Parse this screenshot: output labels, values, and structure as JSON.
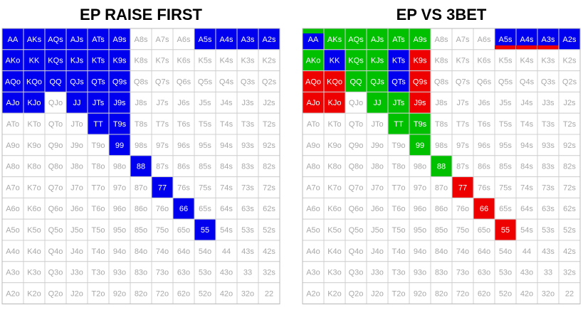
{
  "hands": [
    [
      "AA",
      "AKs",
      "AQs",
      "AJs",
      "ATs",
      "A9s",
      "A8s",
      "A7s",
      "A6s",
      "A5s",
      "A4s",
      "A3s",
      "A2s"
    ],
    [
      "AKo",
      "KK",
      "KQs",
      "KJs",
      "KTs",
      "K9s",
      "K8s",
      "K7s",
      "K6s",
      "K5s",
      "K4s",
      "K3s",
      "K2s"
    ],
    [
      "AQo",
      "KQo",
      "QQ",
      "QJs",
      "QTs",
      "Q9s",
      "Q8s",
      "Q7s",
      "Q6s",
      "Q5s",
      "Q4s",
      "Q3s",
      "Q2s"
    ],
    [
      "AJo",
      "KJo",
      "QJo",
      "JJ",
      "JTs",
      "J9s",
      "J8s",
      "J7s",
      "J6s",
      "J5s",
      "J4s",
      "J3s",
      "J2s"
    ],
    [
      "ATo",
      "KTo",
      "QTo",
      "JTo",
      "TT",
      "T9s",
      "T8s",
      "T7s",
      "T6s",
      "T5s",
      "T4s",
      "T3s",
      "T2s"
    ],
    [
      "A9o",
      "K9o",
      "Q9o",
      "J9o",
      "T9o",
      "99",
      "98s",
      "97s",
      "96s",
      "95s",
      "94s",
      "93s",
      "92s"
    ],
    [
      "A8o",
      "K8o",
      "Q8o",
      "J8o",
      "T8o",
      "98o",
      "88",
      "87s",
      "86s",
      "85s",
      "84s",
      "83s",
      "82s"
    ],
    [
      "A7o",
      "K7o",
      "Q7o",
      "J7o",
      "T7o",
      "97o",
      "87o",
      "77",
      "76s",
      "75s",
      "74s",
      "73s",
      "72s"
    ],
    [
      "A6o",
      "K6o",
      "Q6o",
      "J6o",
      "T6o",
      "96o",
      "86o",
      "76o",
      "66",
      "65s",
      "64s",
      "63s",
      "62s"
    ],
    [
      "A5o",
      "K5o",
      "Q5o",
      "J5o",
      "T5o",
      "95o",
      "85o",
      "75o",
      "65o",
      "55",
      "54s",
      "53s",
      "52s"
    ],
    [
      "A4o",
      "K4o",
      "Q4o",
      "J4o",
      "T4o",
      "94o",
      "84o",
      "74o",
      "64o",
      "54o",
      "44",
      "43s",
      "42s"
    ],
    [
      "A3o",
      "K3o",
      "Q3o",
      "J3o",
      "T3o",
      "93o",
      "83o",
      "73o",
      "63o",
      "53o",
      "43o",
      "33",
      "32s"
    ],
    [
      "A2o",
      "K2o",
      "Q2o",
      "J2o",
      "T2o",
      "92o",
      "82o",
      "72o",
      "62o",
      "52o",
      "42o",
      "32o",
      "22"
    ]
  ],
  "grids": [
    {
      "title": "EP RAISE FIRST",
      "fills": {
        "AA": {
          "color": "#0000ee"
        },
        "AKs": {
          "color": "#0000ee"
        },
        "AQs": {
          "color": "#0000ee"
        },
        "AJs": {
          "color": "#0000ee"
        },
        "ATs": {
          "color": "#0000ee"
        },
        "A9s": {
          "color": "#0000ee"
        },
        "A5s": {
          "color": "#0000ee"
        },
        "A4s": {
          "color": "#0000ee"
        },
        "A3s": {
          "color": "#0000ee"
        },
        "A2s": {
          "color": "#0000ee"
        },
        "AKo": {
          "color": "#0000ee"
        },
        "KK": {
          "color": "#0000ee"
        },
        "KQs": {
          "color": "#0000ee"
        },
        "KJs": {
          "color": "#0000ee"
        },
        "KTs": {
          "color": "#0000ee"
        },
        "K9s": {
          "color": "#0000ee"
        },
        "AQo": {
          "color": "#0000ee"
        },
        "KQo": {
          "color": "#0000ee"
        },
        "QQ": {
          "color": "#0000ee"
        },
        "QJs": {
          "color": "#0000ee"
        },
        "QTs": {
          "color": "#0000ee"
        },
        "Q9s": {
          "color": "#0000ee"
        },
        "AJo": {
          "color": "#0000ee"
        },
        "KJo": {
          "color": "#0000ee"
        },
        "JJ": {
          "color": "#0000ee"
        },
        "JTs": {
          "color": "#0000ee"
        },
        "J9s": {
          "color": "#0000ee"
        },
        "TT": {
          "color": "#0000ee"
        },
        "T9s": {
          "color": "#0000ee"
        },
        "99": {
          "color": "#0000ee"
        },
        "88": {
          "color": "#0000ee"
        },
        "77": {
          "color": "#0000ee"
        },
        "66": {
          "color": "#0000ee"
        },
        "55": {
          "color": "#0000ee"
        }
      }
    },
    {
      "title": "EP VS 3BET",
      "fills": {
        "AA": {
          "color": "#0000ee",
          "top": "#00c000"
        },
        "AKs": {
          "color": "#00c000"
        },
        "AQs": {
          "color": "#00c000"
        },
        "AJs": {
          "color": "#00c000"
        },
        "ATs": {
          "color": "#00c000"
        },
        "A9s": {
          "color": "#00c000"
        },
        "A5s": {
          "color": "#0000ee",
          "bottom": "#ee0000"
        },
        "A4s": {
          "color": "#0000ee",
          "bottom": "#ee0000"
        },
        "A3s": {
          "color": "#0000ee",
          "bottom": "#ee0000"
        },
        "A2s": {
          "color": "#0000ee"
        },
        "AKo": {
          "color": "#00c000"
        },
        "KK": {
          "color": "#0000ee"
        },
        "KQs": {
          "color": "#00c000"
        },
        "KJs": {
          "color": "#00c000"
        },
        "KTs": {
          "color": "#0000ee"
        },
        "K9s": {
          "color": "#ee0000"
        },
        "AQo": {
          "color": "#ee0000"
        },
        "KQo": {
          "color": "#ee0000"
        },
        "QQ": {
          "color": "#00c000"
        },
        "QJs": {
          "color": "#00c000"
        },
        "QTs": {
          "color": "#0000ee"
        },
        "Q9s": {
          "color": "#ee0000"
        },
        "AJo": {
          "color": "#ee0000"
        },
        "KJo": {
          "color": "#ee0000"
        },
        "JJ": {
          "color": "#00c000"
        },
        "JTs": {
          "color": "#00c000"
        },
        "J9s": {
          "color": "#ee0000"
        },
        "TT": {
          "color": "#00c000"
        },
        "T9s": {
          "color": "#00c000"
        },
        "99": {
          "color": "#00c000"
        },
        "88": {
          "color": "#00c000"
        },
        "77": {
          "color": "#ee0000"
        },
        "66": {
          "color": "#ee0000"
        },
        "55": {
          "color": "#ee0000"
        }
      }
    }
  ]
}
